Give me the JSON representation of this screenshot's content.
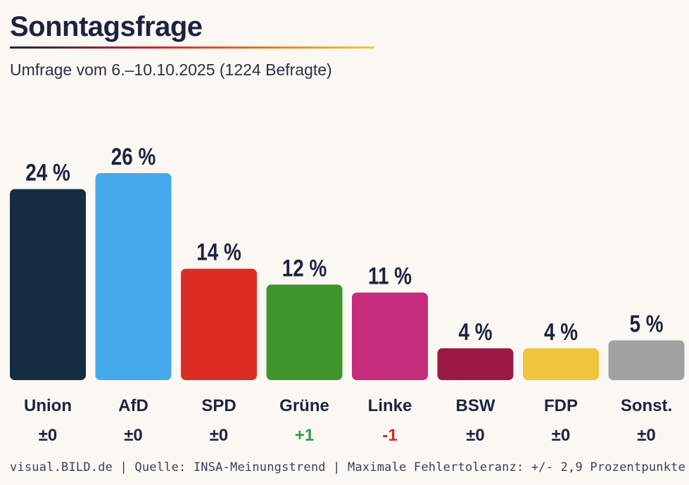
{
  "header": {
    "title": "Sonntagsfrage",
    "subtitle": "Umfrage vom 6.–10.10.2025 (1224 Befragte)"
  },
  "chart_data": {
    "type": "bar",
    "title": "Sonntagsfrage",
    "subtitle": "Umfrage vom 6.–10.10.2025 (1224 Befragte)",
    "unit": "%",
    "categories": [
      "Union",
      "AfD",
      "SPD",
      "Grüne",
      "Linke",
      "BSW",
      "FDP",
      "Sonst."
    ],
    "values": [
      24,
      26,
      14,
      12,
      11,
      4,
      4,
      5
    ],
    "value_labels": [
      "24 %",
      "26 %",
      "14 %",
      "12 %",
      "11 %",
      "4 %",
      "4 %",
      "5 %"
    ],
    "changes": [
      "±0",
      "±0",
      "±0",
      "+1",
      "-1",
      "±0",
      "±0",
      "±0"
    ],
    "colors": [
      "#152d43",
      "#45aaeb",
      "#dd2e26",
      "#3f962d",
      "#c52c7b",
      "#9a1a45",
      "#f0c43c",
      "#a0a0a0"
    ],
    "change_colors": {
      "neutral": "#1c2340",
      "positive": "#2f9c4f",
      "negative": "#d42a2a"
    },
    "ylim": [
      0,
      26
    ]
  },
  "footer": {
    "source": "visual.BILD.de | Quelle: INSA-Meinungstrend | Maximale Fehlertoleranz: +/- 2,9 Prozentpunkte"
  }
}
